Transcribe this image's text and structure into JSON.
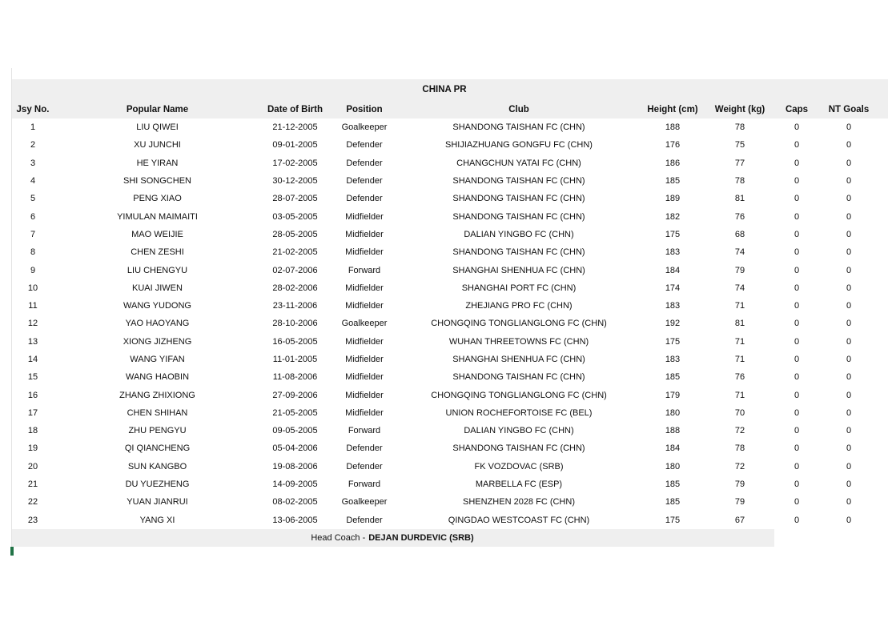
{
  "colors": {
    "band_gray": "#efefef",
    "cursor_green": "#217346",
    "gridline": "#e3e3e3"
  },
  "table": {
    "title": "CHINA PR",
    "head_coach_label": "Head Coach -",
    "head_coach_name": "DEJAN DURDEVIC (SRB)",
    "columns": [
      {
        "key": "jsy",
        "label": "Jsy No."
      },
      {
        "key": "name",
        "label": "Popular Name"
      },
      {
        "key": "dob",
        "label": "Date of Birth"
      },
      {
        "key": "position",
        "label": "Position"
      },
      {
        "key": "club",
        "label": "Club"
      },
      {
        "key": "height",
        "label": "Height (cm)"
      },
      {
        "key": "weight",
        "label": "Weight (kg)"
      },
      {
        "key": "caps",
        "label": "Caps"
      },
      {
        "key": "nt_goals",
        "label": "NT Goals"
      }
    ]
  },
  "players": [
    {
      "jsy": "1",
      "name": "LIU QIWEI",
      "dob": "21-12-2005",
      "position": "Goalkeeper",
      "club": "SHANDONG TAISHAN FC (CHN)",
      "height": "188",
      "weight": "78",
      "caps": "0",
      "nt_goals": "0"
    },
    {
      "jsy": "2",
      "name": "XU JUNCHI",
      "dob": "09-01-2005",
      "position": "Defender",
      "club": "SHIJIAZHUANG GONGFU FC (CHN)",
      "height": "176",
      "weight": "75",
      "caps": "0",
      "nt_goals": "0"
    },
    {
      "jsy": "3",
      "name": "HE YIRAN",
      "dob": "17-02-2005",
      "position": "Defender",
      "club": "CHANGCHUN YATAI FC (CHN)",
      "height": "186",
      "weight": "77",
      "caps": "0",
      "nt_goals": "0"
    },
    {
      "jsy": "4",
      "name": "SHI SONGCHEN",
      "dob": "30-12-2005",
      "position": "Defender",
      "club": "SHANDONG TAISHAN FC (CHN)",
      "height": "185",
      "weight": "78",
      "caps": "0",
      "nt_goals": "0"
    },
    {
      "jsy": "5",
      "name": "PENG XIAO",
      "dob": "28-07-2005",
      "position": "Defender",
      "club": "SHANDONG TAISHAN FC (CHN)",
      "height": "189",
      "weight": "81",
      "caps": "0",
      "nt_goals": "0"
    },
    {
      "jsy": "6",
      "name": "YIMULAN MAIMAITI",
      "dob": "03-05-2005",
      "position": "Midfielder",
      "club": "SHANDONG TAISHAN FC (CHN)",
      "height": "182",
      "weight": "76",
      "caps": "0",
      "nt_goals": "0"
    },
    {
      "jsy": "7",
      "name": "MAO WEIJIE",
      "dob": "28-05-2005",
      "position": "Midfielder",
      "club": "DALIAN YINGBO FC (CHN)",
      "height": "175",
      "weight": "68",
      "caps": "0",
      "nt_goals": "0"
    },
    {
      "jsy": "8",
      "name": "CHEN ZESHI",
      "dob": "21-02-2005",
      "position": "Midfielder",
      "club": "SHANDONG TAISHAN FC (CHN)",
      "height": "183",
      "weight": "74",
      "caps": "0",
      "nt_goals": "0"
    },
    {
      "jsy": "9",
      "name": "LIU CHENGYU",
      "dob": "02-07-2006",
      "position": "Forward",
      "club": "SHANGHAI SHENHUA FC (CHN)",
      "height": "184",
      "weight": "79",
      "caps": "0",
      "nt_goals": "0"
    },
    {
      "jsy": "10",
      "name": "KUAI JIWEN",
      "dob": "28-02-2006",
      "position": "Midfielder",
      "club": "SHANGHAI PORT FC (CHN)",
      "height": "174",
      "weight": "74",
      "caps": "0",
      "nt_goals": "0"
    },
    {
      "jsy": "11",
      "name": "WANG YUDONG",
      "dob": "23-11-2006",
      "position": "Midfielder",
      "club": "ZHEJIANG PRO FC (CHN)",
      "height": "183",
      "weight": "71",
      "caps": "0",
      "nt_goals": "0"
    },
    {
      "jsy": "12",
      "name": "YAO HAOYANG",
      "dob": "28-10-2006",
      "position": "Goalkeeper",
      "club": "CHONGQING TONGLIANGLONG FC (CHN)",
      "height": "192",
      "weight": "81",
      "caps": "0",
      "nt_goals": "0"
    },
    {
      "jsy": "13",
      "name": "XIONG JIZHENG",
      "dob": "16-05-2005",
      "position": "Midfielder",
      "club": "WUHAN THREETOWNS FC (CHN)",
      "height": "175",
      "weight": "71",
      "caps": "0",
      "nt_goals": "0"
    },
    {
      "jsy": "14",
      "name": "WANG YIFAN",
      "dob": "11-01-2005",
      "position": "Midfielder",
      "club": "SHANGHAI SHENHUA FC (CHN)",
      "height": "183",
      "weight": "71",
      "caps": "0",
      "nt_goals": "0"
    },
    {
      "jsy": "15",
      "name": "WANG HAOBIN",
      "dob": "11-08-2006",
      "position": "Midfielder",
      "club": "SHANDONG TAISHAN FC (CHN)",
      "height": "185",
      "weight": "76",
      "caps": "0",
      "nt_goals": "0"
    },
    {
      "jsy": "16",
      "name": "ZHANG ZHIXIONG",
      "dob": "27-09-2006",
      "position": "Midfielder",
      "club": "CHONGQING TONGLIANGLONG FC (CHN)",
      "height": "179",
      "weight": "71",
      "caps": "0",
      "nt_goals": "0"
    },
    {
      "jsy": "17",
      "name": "CHEN SHIHAN",
      "dob": "21-05-2005",
      "position": "Midfielder",
      "club": "UNION ROCHEFORTOISE FC (BEL)",
      "height": "180",
      "weight": "70",
      "caps": "0",
      "nt_goals": "0"
    },
    {
      "jsy": "18",
      "name": "ZHU PENGYU",
      "dob": "09-05-2005",
      "position": "Forward",
      "club": "DALIAN YINGBO FC (CHN)",
      "height": "188",
      "weight": "72",
      "caps": "0",
      "nt_goals": "0"
    },
    {
      "jsy": "19",
      "name": "QI QIANCHENG",
      "dob": "05-04-2006",
      "position": "Defender",
      "club": "SHANDONG TAISHAN FC (CHN)",
      "height": "184",
      "weight": "78",
      "caps": "0",
      "nt_goals": "0"
    },
    {
      "jsy": "20",
      "name": "SUN KANGBO",
      "dob": "19-08-2006",
      "position": "Defender",
      "club": "FK VOZDOVAC (SRB)",
      "height": "180",
      "weight": "72",
      "caps": "0",
      "nt_goals": "0"
    },
    {
      "jsy": "21",
      "name": "DU YUEZHENG",
      "dob": "14-09-2005",
      "position": "Forward",
      "club": "MARBELLA FC (ESP)",
      "height": "185",
      "weight": "79",
      "caps": "0",
      "nt_goals": "0"
    },
    {
      "jsy": "22",
      "name": "YUAN JIANRUI",
      "dob": "08-02-2005",
      "position": "Goalkeeper",
      "club": "SHENZHEN 2028 FC (CHN)",
      "height": "185",
      "weight": "79",
      "caps": "0",
      "nt_goals": "0"
    },
    {
      "jsy": "23",
      "name": "YANG XI",
      "dob": "13-06-2005",
      "position": "Defender",
      "club": "QINGDAO WESTCOAST FC (CHN)",
      "height": "175",
      "weight": "67",
      "caps": "0",
      "nt_goals": "0"
    }
  ]
}
